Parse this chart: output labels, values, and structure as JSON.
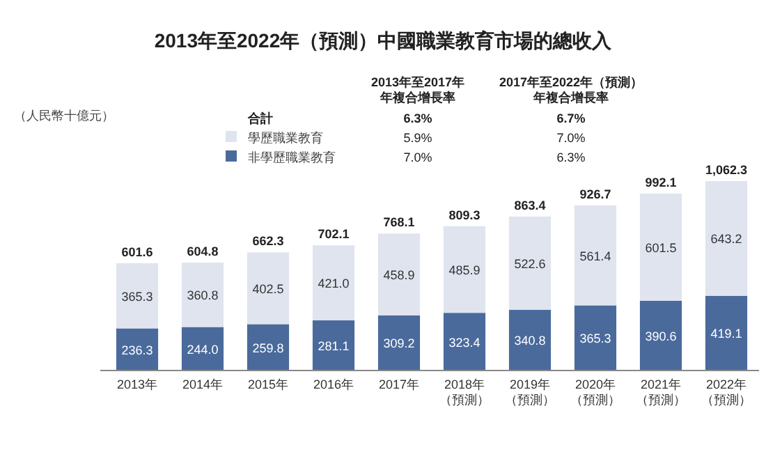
{
  "chart_data": {
    "type": "bar",
    "stacked": true,
    "legend": "top",
    "title": "2013年至2022年（預測）中國職業教育市場的總收入",
    "ylabel": "（人民幣十億元）",
    "categories": [
      "2013年",
      "2014年",
      "2015年",
      "2016年",
      "2017年",
      "2018年（預測）",
      "2019年（預測）",
      "2020年（預測）",
      "2021年（預測）",
      "2022年（預測）"
    ],
    "series": [
      {
        "name": "非學歷職業教育",
        "color": "#4a6a9c",
        "values": [
          236.3,
          244.0,
          259.8,
          281.1,
          309.2,
          323.4,
          340.8,
          365.3,
          390.6,
          419.1
        ],
        "value_labels": [
          "236.3",
          "244.0",
          "259.8",
          "281.1",
          "309.2",
          "323.4",
          "340.8",
          "365.3",
          "390.6",
          "419.1"
        ]
      },
      {
        "name": "學歷職業教育",
        "color": "#dfe4ef",
        "values": [
          365.3,
          360.8,
          402.5,
          421.0,
          458.9,
          485.9,
          522.6,
          561.4,
          601.5,
          643.2
        ],
        "value_labels": [
          "365.3",
          "360.8",
          "402.5",
          "421.0",
          "458.9",
          "485.9",
          "522.6",
          "561.4",
          "601.5",
          "643.2"
        ]
      }
    ],
    "totals": [
      "601.6",
      "604.8",
      "662.3",
      "702.1",
      "768.1",
      "809.3",
      "863.4",
      "926.7",
      "992.1",
      "1,062.3"
    ],
    "annotations": [
      "2013年至2017年",
      "年複合增長率",
      "2017年至2022年（預測）",
      "年複合增長率",
      "合計",
      "6.3%",
      "6.7%",
      "5.9%",
      "7.0%",
      "7.0%",
      "6.3%"
    ]
  }
}
